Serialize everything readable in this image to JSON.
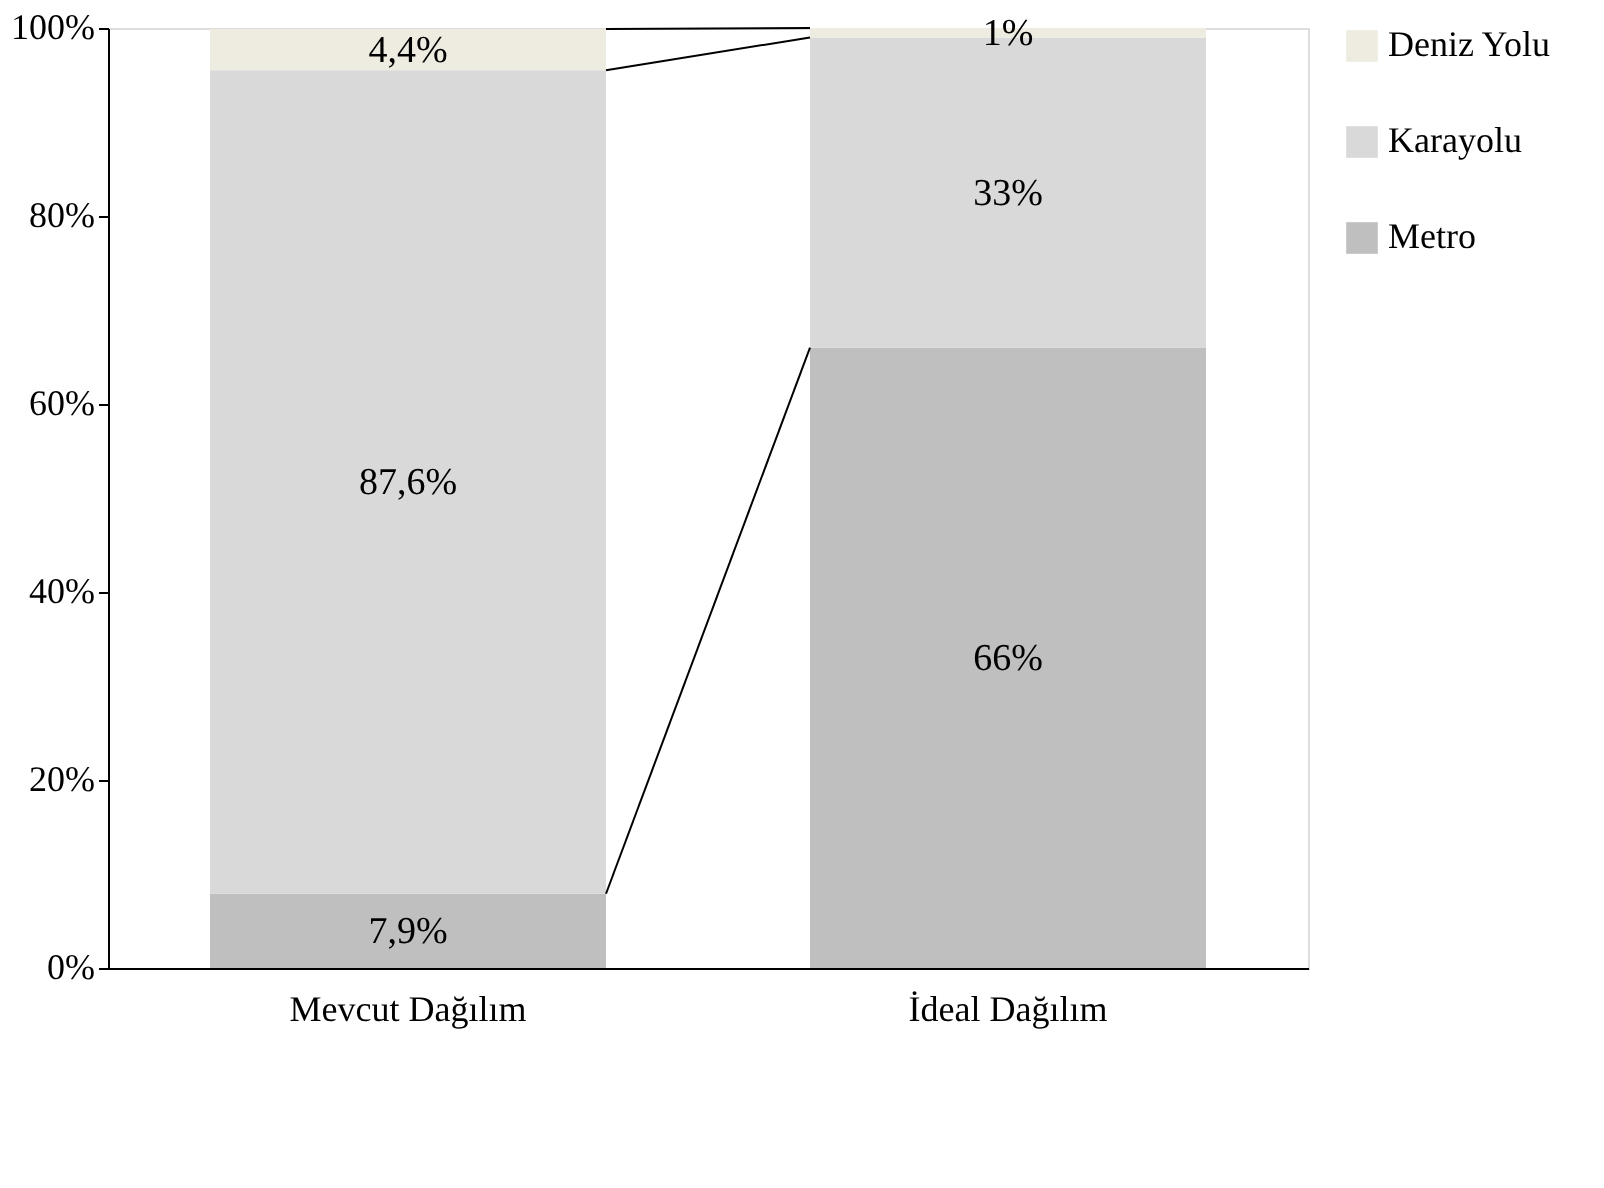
{
  "chart_data": {
    "type": "bar",
    "stacked": true,
    "categories": [
      "Mevcut Dağılım",
      "İdeal Dağılım"
    ],
    "series": [
      {
        "name": "Metro",
        "color": "#bfbfbf",
        "values": [
          7.9,
          66
        ],
        "value_labels": [
          "7,9%",
          "66%"
        ]
      },
      {
        "name": "Karayolu",
        "color": "#d9d9d9",
        "values": [
          87.6,
          33
        ],
        "value_labels": [
          "87,6%",
          "33%"
        ]
      },
      {
        "name": "Deniz Yolu",
        "color": "#eeece1",
        "values": [
          4.4,
          1
        ],
        "value_labels": [
          "4,4%",
          "1%"
        ]
      }
    ],
    "ylim": [
      0,
      100
    ],
    "yticks": [
      {
        "value": 0,
        "label": "0%"
      },
      {
        "value": 20,
        "label": "20%"
      },
      {
        "value": 40,
        "label": "40%"
      },
      {
        "value": 60,
        "label": "60%"
      },
      {
        "value": 80,
        "label": "80%"
      },
      {
        "value": 100,
        "label": "100%"
      }
    ],
    "grid": false,
    "legend": "right"
  }
}
